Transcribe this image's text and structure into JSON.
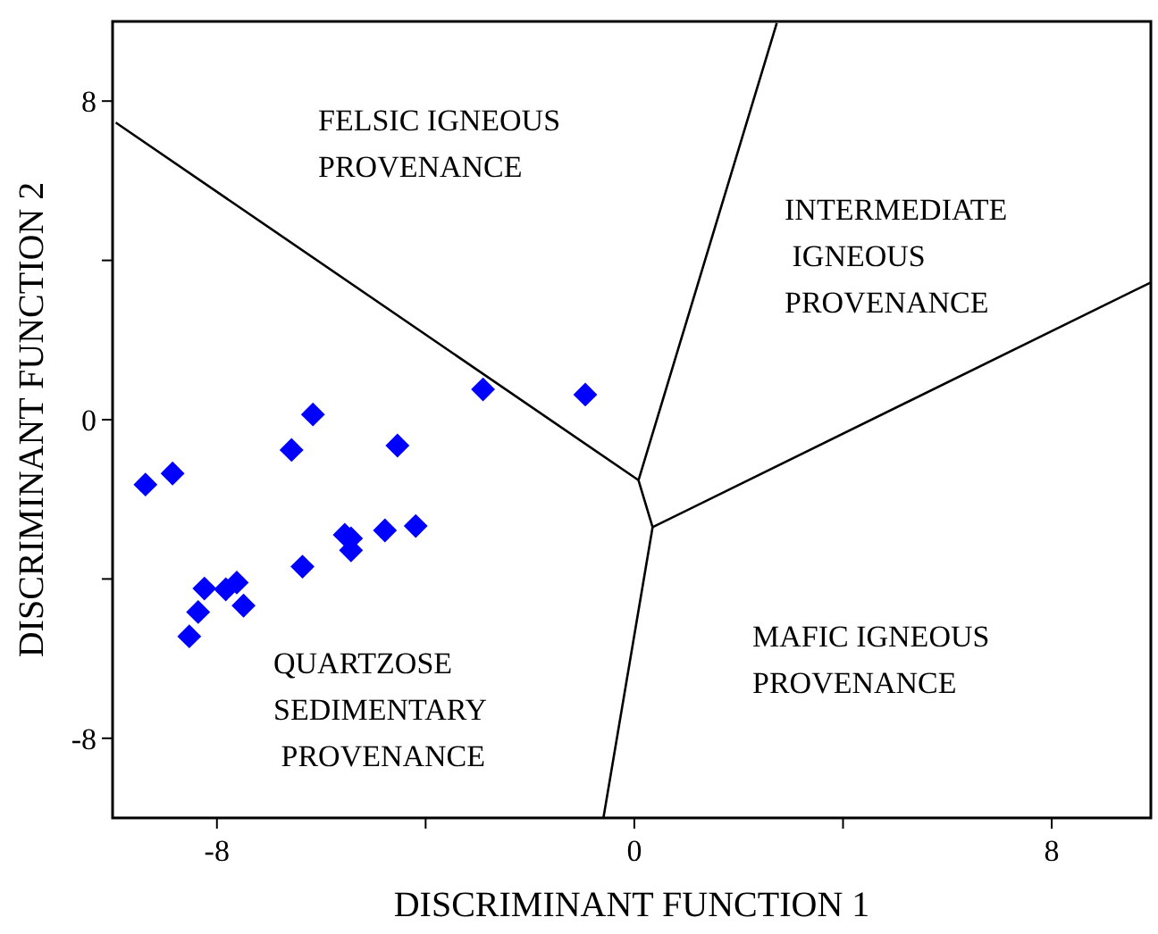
{
  "chart_data": {
    "type": "scatter",
    "xlabel": "DISCRIMINANT FUNCTION 1",
    "ylabel": "DISCRIMINANT FUNCTION 2",
    "xlim": [
      -10,
      9.9
    ],
    "ylim": [
      -10,
      10
    ],
    "xticks": [
      -8,
      {
        "value": -4,
        "label": null
      },
      0,
      {
        "value": 4,
        "label": null
      },
      8
    ],
    "yticks": [
      -8,
      {
        "value": -4,
        "label": null
      },
      0,
      {
        "value": 4,
        "label": null
      },
      8
    ],
    "grid": false,
    "marker": "diamond",
    "series": [
      {
        "color": "#0000ff",
        "x": [
          -9.37,
          -8.85,
          -6.57,
          -6.16,
          -4.54,
          -2.9,
          -0.94,
          -5.55,
          -5.43,
          -5.43,
          -4.78,
          -4.19,
          -6.36,
          -8.24,
          -7.83,
          -7.62,
          -7.49,
          -8.36,
          -8.53
        ],
        "values": [
          -1.63,
          -1.35,
          -0.76,
          0.13,
          -0.65,
          0.76,
          0.63,
          -2.89,
          -2.98,
          -3.28,
          -2.78,
          -2.67,
          -3.69,
          -4.24,
          -4.26,
          -4.09,
          -4.67,
          -4.83,
          -5.44
        ]
      },
      {
        "type": "line",
        "color": "#000000",
        "marker": "none",
        "line_style": "solid",
        "x": [
          -9.94,
          0.08,
          2.73
        ],
        "values": [
          7.46,
          -1.52,
          9.96
        ]
      },
      {
        "type": "line",
        "color": "#000000",
        "marker": "none",
        "line_style": "solid",
        "x": [
          0.08,
          0.35,
          9.89
        ],
        "values": [
          -1.52,
          -2.7,
          3.44
        ]
      },
      {
        "type": "line",
        "color": "#000000",
        "marker": "none",
        "line_style": "solid",
        "x": [
          0.35,
          -0.59
        ],
        "values": [
          -2.7,
          -9.98
        ]
      }
    ],
    "annotations": [
      "FELSIC IGNEOUS\nPROVENANCE",
      "INTERMEDIATE\n IGNEOUS\nPROVENANCE",
      "MAFIC IGNEOUS\nPROVENANCE",
      "QUARTZOSE\nSEDIMENTARY\n PROVENANCE"
    ]
  }
}
